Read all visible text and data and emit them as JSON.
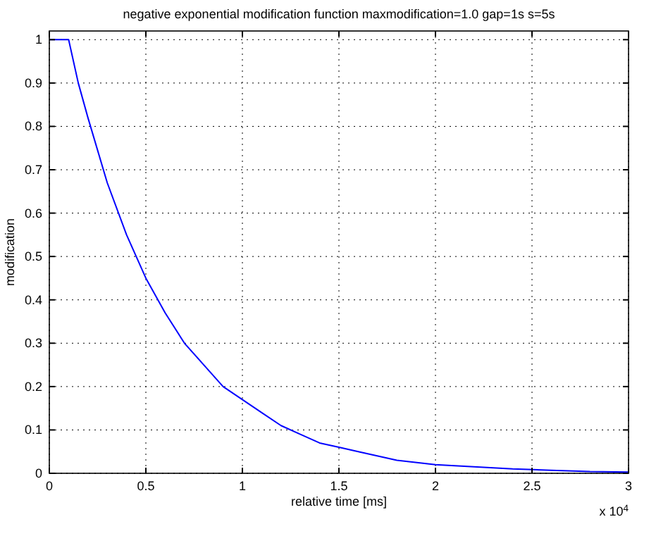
{
  "chart_data": {
    "type": "line",
    "title": "negative exponential modification function maxmodification=1.0 gap=1s s=5s",
    "xlabel": "relative time [ms]",
    "ylabel": "modification",
    "x": [
      0,
      0.1,
      0.15,
      0.2,
      0.3,
      0.4,
      0.5,
      0.6,
      0.7,
      0.8,
      0.9,
      1,
      1.1,
      1.2,
      1.3,
      1.4,
      1.5,
      1.6,
      1.8,
      2,
      2.2,
      2.4,
      2.6,
      2.8,
      3
    ],
    "series": [
      {
        "color": "#0000ff",
        "values": [
          1,
          1,
          0.9,
          0.82,
          0.67,
          0.55,
          0.45,
          0.37,
          0.3,
          0.25,
          0.2,
          0.17,
          0.14,
          0.11,
          0.09,
          0.07,
          0.06,
          0.05,
          0.03,
          0.02,
          0.015,
          0.01,
          0.007,
          0.004,
          0.003
        ]
      }
    ],
    "xlim": [
      0,
      3
    ],
    "ylim": [
      0,
      1.02
    ],
    "xticks": [
      0,
      0.5,
      1,
      1.5,
      2,
      2.5,
      3
    ],
    "yticks": [
      0,
      0.1,
      0.2,
      0.3,
      0.4,
      0.5,
      0.6,
      0.7,
      0.8,
      0.9,
      1
    ],
    "grid": true,
    "line_style": "solid",
    "annotations": [
      "x 10$^{4}$"
    ]
  }
}
